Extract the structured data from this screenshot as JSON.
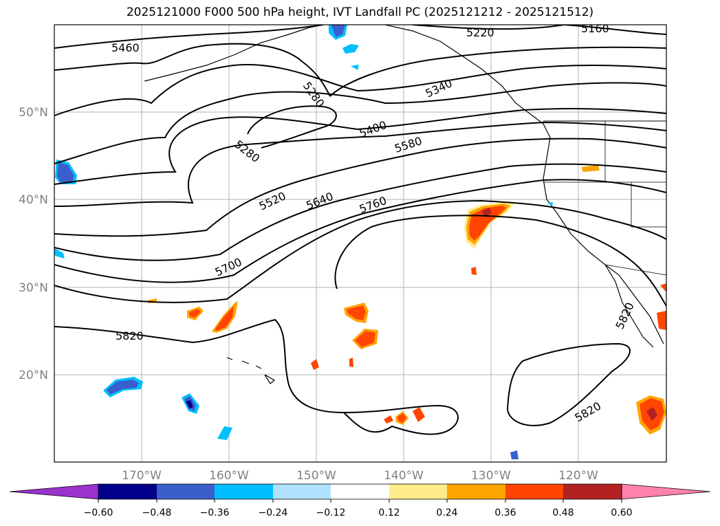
{
  "title": "2025121000 F000 500 hPa height, IVT Landfall PC (2025121212 - 2025121512)",
  "map": {
    "lat_labels": [
      "50°N",
      "40°N",
      "30°N",
      "20°N"
    ],
    "lon_labels": [
      "170°W",
      "160°W",
      "150°W",
      "140°W",
      "130°W",
      "120°W"
    ],
    "grid_color": "#b0b0b0",
    "label_color": "#808080"
  },
  "contours": {
    "color": "#000000",
    "labels": [
      "5460",
      "5220",
      "5160",
      "5280",
      "5280",
      "5340",
      "5400",
      "5580",
      "5520",
      "5640",
      "5760",
      "5700",
      "5820",
      "5820",
      "5820"
    ]
  },
  "colorbar": {
    "ticks": [
      "−0.60",
      "−0.48",
      "−0.36",
      "−0.24",
      "−0.12",
      "0.12",
      "0.24",
      "0.36",
      "0.48",
      "0.60"
    ],
    "colors": [
      "#9a32cd",
      "#00008b",
      "#3a5fcd",
      "#00bfff",
      "#b0e2ff",
      "#ffffff",
      "#ffec8b",
      "#ffa500",
      "#ff4500",
      "#b22222",
      "#ff82ab"
    ]
  }
}
